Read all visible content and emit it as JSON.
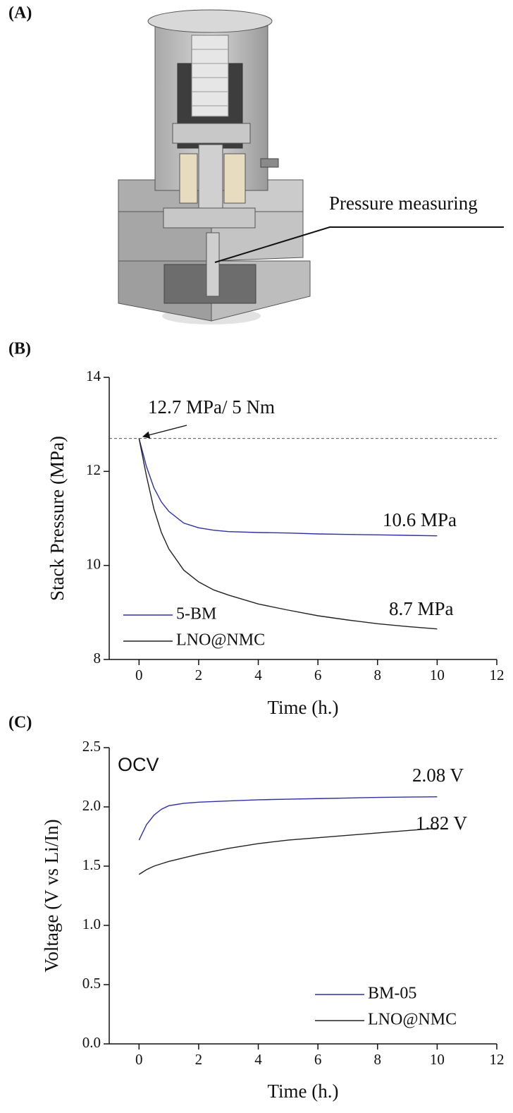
{
  "panel_a": {
    "label": "(A)",
    "annotation": "Pressure measuring"
  },
  "chart_data": [
    {
      "type": "line",
      "panel_label": "(B)",
      "x_label": "Time (h.)",
      "y_label": "Stack Pressure (MPa)",
      "xlim": [
        -1,
        12
      ],
      "xticks": [
        0,
        2,
        4,
        6,
        8,
        10,
        12
      ],
      "ylim": [
        8,
        14
      ],
      "yticks": [
        8,
        10,
        12,
        14
      ],
      "reference_line": 12.7,
      "legend": "lower left",
      "x": [
        0,
        0.25,
        0.5,
        0.75,
        1,
        1.5,
        2,
        2.5,
        3,
        4,
        5,
        6,
        7,
        8,
        9,
        10
      ],
      "series": [
        {
          "name": "5-BM",
          "color": "#2f2fa8",
          "values": [
            12.7,
            12.1,
            11.65,
            11.35,
            11.15,
            10.9,
            10.8,
            10.75,
            10.72,
            10.7,
            10.69,
            10.67,
            10.66,
            10.65,
            10.64,
            10.63
          ]
        },
        {
          "name": "LNO@NMC",
          "color": "#222222",
          "values": [
            12.7,
            11.9,
            11.2,
            10.7,
            10.35,
            9.9,
            9.65,
            9.48,
            9.37,
            9.18,
            9.05,
            8.93,
            8.84,
            8.76,
            8.7,
            8.65
          ]
        }
      ],
      "annotations": [
        {
          "text": "12.7 MPa/ 5 Nm",
          "color": "#111111"
        },
        {
          "text": "10.6 MPa",
          "color": "#2f2fa8"
        },
        {
          "text": "8.7 MPa",
          "color": "#111111"
        }
      ]
    },
    {
      "type": "line",
      "panel_label": "(C)",
      "x_label": "Time (h.)",
      "y_label": "Voltage (V vs Li/In)",
      "xlim": [
        -1,
        12
      ],
      "xticks": [
        0,
        2,
        4,
        6,
        8,
        10,
        12
      ],
      "ylim": [
        0,
        2.5
      ],
      "yticks": [
        {
          "value": 0,
          "label": "0.0"
        },
        0.5,
        {
          "value": 1,
          "label": "1.0"
        },
        1.5,
        {
          "value": 2,
          "label": "2.0"
        },
        2.5
      ],
      "legend": "lower right",
      "x": [
        0,
        0.25,
        0.5,
        0.75,
        1,
        1.5,
        2,
        3,
        4,
        5,
        6,
        7,
        8,
        9,
        10
      ],
      "series": [
        {
          "name": "BM-05",
          "color": "#2f2fa8",
          "values": [
            1.72,
            1.85,
            1.93,
            1.98,
            2.01,
            2.03,
            2.04,
            2.05,
            2.06,
            2.065,
            2.07,
            2.075,
            2.08,
            2.083,
            2.085
          ]
        },
        {
          "name": "LNO@NMC",
          "color": "#222222",
          "values": [
            1.43,
            1.47,
            1.5,
            1.52,
            1.54,
            1.57,
            1.6,
            1.65,
            1.69,
            1.72,
            1.74,
            1.76,
            1.78,
            1.8,
            1.82
          ]
        }
      ],
      "annotations": [
        {
          "text": "OCV",
          "color": "#111111"
        },
        {
          "text": "2.08 V",
          "color": "#2f2fa8"
        },
        {
          "text": "1.82 V",
          "color": "#111111"
        }
      ]
    }
  ]
}
